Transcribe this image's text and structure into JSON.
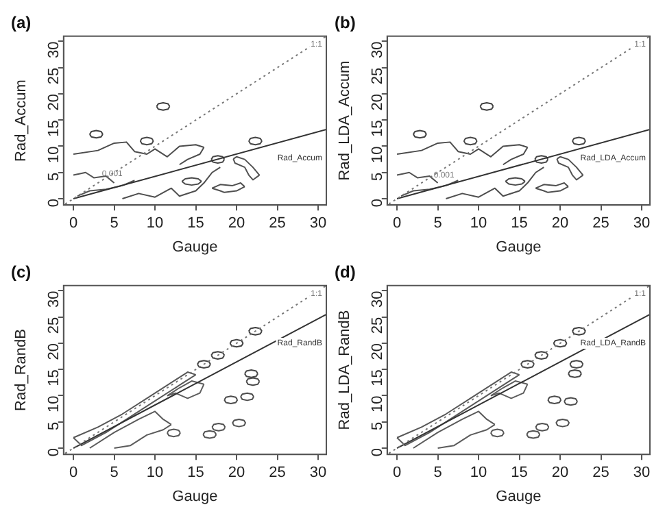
{
  "chart_data": [
    {
      "type": "line",
      "title": "(a)",
      "xlabel": "Gauge",
      "ylabel": "Rad_Accum",
      "xlim": [
        -1.2,
        31
      ],
      "ylim": [
        -1.2,
        31
      ],
      "xticks": [
        0,
        5,
        10,
        15,
        20,
        25,
        30
      ],
      "yticks": [
        0,
        5,
        10,
        15,
        20,
        25,
        30
      ],
      "legend": false,
      "marker": "none",
      "annotations": [
        {
          "text": "0.001",
          "x": 3.5,
          "y": 4.7
        }
      ],
      "series": [
        {
          "name": "1:1",
          "color": "#777777",
          "line_style": "dotted",
          "x": [
            -1,
            31
          ],
          "values": [
            -1,
            31
          ]
        },
        {
          "name": "Rad_Accum",
          "color": "#333333",
          "line_style": "solid",
          "x": [
            0,
            31
          ],
          "values": [
            0,
            13.2
          ]
        },
        {
          "color": "#404040",
          "x": [
            10.2,
            10.4,
            11,
            11.6,
            11.8
          ],
          "values": [
            17.6,
            18.1,
            18.3,
            18.1,
            17.6
          ]
        },
        {
          "color": "#414141",
          "x": [
            10.2,
            10.4,
            11,
            11.6,
            11.8
          ],
          "values": [
            17.6,
            17.1,
            16.9,
            17.1,
            17.6
          ]
        },
        {
          "color": "#424242",
          "x": [
            2,
            2.2,
            2.8,
            3.4,
            3.6
          ],
          "values": [
            12.3,
            12.8,
            13,
            12.8,
            12.3
          ]
        },
        {
          "color": "#434343",
          "x": [
            2,
            2.2,
            2.8,
            3.4,
            3.6
          ],
          "values": [
            12.3,
            11.8,
            11.6,
            11.8,
            12.3
          ]
        },
        {
          "color": "#444444",
          "x": [
            21.5,
            21.7,
            22.3,
            22.9,
            23.1
          ],
          "values": [
            11,
            11.5,
            11.7,
            11.5,
            11
          ]
        },
        {
          "color": "#454545",
          "x": [
            21.5,
            21.7,
            22.3,
            22.9,
            23.1
          ],
          "values": [
            11,
            10.5,
            10.3,
            10.5,
            11
          ]
        },
        {
          "color": "#464646",
          "x": [
            8.2,
            8.4,
            9,
            9.6,
            9.8
          ],
          "values": [
            11,
            11.5,
            11.7,
            11.5,
            11
          ]
        },
        {
          "color": "#474747",
          "x": [
            8.2,
            8.4,
            9,
            9.6,
            9.8
          ],
          "values": [
            11,
            10.5,
            10.3,
            10.5,
            11
          ]
        },
        {
          "color": "#484848",
          "x": [
            16.9,
            17.1,
            17.7,
            18.3,
            18.5
          ],
          "values": [
            7.5,
            8,
            8.2,
            8,
            7.5
          ]
        },
        {
          "color": "#494949",
          "x": [
            16.9,
            17.1,
            17.7,
            18.3,
            18.5
          ],
          "values": [
            7.5,
            7,
            6.8,
            7,
            7.5
          ]
        },
        {
          "color": "#4a4a4a",
          "x": [
            13.3,
            13.7,
            14.5,
            15.3,
            15.7
          ],
          "values": [
            3.3,
            3.8,
            4,
            3.8,
            3.3
          ]
        },
        {
          "color": "#4b4b4b",
          "x": [
            13.3,
            13.7,
            14.5,
            15.3,
            15.7
          ],
          "values": [
            3.3,
            2.8,
            2.6,
            2.8,
            3.3
          ]
        },
        {
          "color": "#4c4c4c",
          "x": [
            0,
            3,
            5,
            6.5,
            7.5,
            9,
            10,
            11.5,
            13,
            15,
            16
          ],
          "values": [
            8.5,
            9.2,
            10.6,
            10.8,
            9,
            8.5,
            9.5,
            8,
            10,
            10.3,
            9.8
          ]
        },
        {
          "color": "#4d4d4d",
          "x": [
            13,
            14,
            15.5,
            16
          ],
          "values": [
            6.5,
            7.5,
            8.5,
            9.8
          ]
        },
        {
          "color": "#4e4e4e",
          "x": [
            6,
            8,
            10,
            12,
            13,
            15,
            16,
            17,
            18
          ],
          "values": [
            0,
            1,
            0.3,
            2,
            0.5,
            1.5,
            3,
            5,
            6
          ]
        },
        {
          "color": "#4f4f4f",
          "x": [
            17,
            18,
            19.5,
            20.5,
            21
          ],
          "values": [
            2,
            2.7,
            2.5,
            3,
            2.3
          ]
        },
        {
          "color": "#505050",
          "x": [
            17,
            18,
            18.5,
            20,
            21
          ],
          "values": [
            2,
            1.5,
            1.2,
            1.5,
            2.3
          ]
        },
        {
          "color": "#515151",
          "x": [
            19.6,
            20,
            21,
            22,
            22.8
          ],
          "values": [
            7.6,
            8,
            7.5,
            6,
            4.5
          ]
        },
        {
          "color": "#525252",
          "x": [
            19.6,
            19.8,
            21,
            21.5,
            22,
            22.8
          ],
          "values": [
            7.6,
            6.8,
            6,
            4.5,
            3.6,
            4.5
          ]
        },
        {
          "color": "#535353",
          "x": [
            0,
            1.5,
            2.5,
            4,
            5
          ],
          "values": [
            4.5,
            5,
            4,
            4.3,
            3
          ]
        },
        {
          "color": "#545454",
          "x": [
            0.5,
            2,
            4,
            6,
            7.5
          ],
          "values": [
            0.5,
            1.5,
            1.8,
            2.5,
            3.5
          ]
        }
      ]
    },
    {
      "type": "line",
      "title": "(b)",
      "xlabel": "Gauge",
      "ylabel": "Rad_LDA_Accum",
      "xlim": [
        -1.2,
        31
      ],
      "ylim": [
        -1.2,
        31
      ],
      "xticks": [
        0,
        5,
        10,
        15,
        20,
        25,
        30
      ],
      "yticks": [
        0,
        5,
        10,
        15,
        20,
        25,
        30
      ],
      "legend": false,
      "marker": "none",
      "annotations": [
        {
          "text": "0.001",
          "x": 4.5,
          "y": 4.5
        }
      ],
      "series": [
        {
          "name": "1:1",
          "color": "#777777",
          "line_style": "dotted",
          "x": [
            -1,
            31
          ],
          "values": [
            -1,
            31
          ]
        },
        {
          "name": "Rad_LDA_Accum",
          "color": "#333333",
          "line_style": "solid",
          "x": [
            0,
            31
          ],
          "values": [
            0,
            13.2
          ]
        },
        {
          "color": "#404040",
          "x": [
            10.2,
            10.4,
            11,
            11.6,
            11.8
          ],
          "values": [
            17.6,
            18.1,
            18.3,
            18.1,
            17.6
          ]
        },
        {
          "color": "#414141",
          "x": [
            10.2,
            10.4,
            11,
            11.6,
            11.8
          ],
          "values": [
            17.6,
            17.1,
            16.9,
            17.1,
            17.6
          ]
        },
        {
          "color": "#424242",
          "x": [
            2,
            2.2,
            2.8,
            3.4,
            3.6
          ],
          "values": [
            12.3,
            12.8,
            13,
            12.8,
            12.3
          ]
        },
        {
          "color": "#434343",
          "x": [
            2,
            2.2,
            2.8,
            3.4,
            3.6
          ],
          "values": [
            12.3,
            11.8,
            11.6,
            11.8,
            12.3
          ]
        },
        {
          "color": "#444444",
          "x": [
            21.5,
            21.7,
            22.3,
            22.9,
            23.1
          ],
          "values": [
            11,
            11.5,
            11.7,
            11.5,
            11
          ]
        },
        {
          "color": "#454545",
          "x": [
            21.5,
            21.7,
            22.3,
            22.9,
            23.1
          ],
          "values": [
            11,
            10.5,
            10.3,
            10.5,
            11
          ]
        },
        {
          "color": "#464646",
          "x": [
            8.2,
            8.4,
            9,
            9.6,
            9.8
          ],
          "values": [
            11,
            11.5,
            11.7,
            11.5,
            11
          ]
        },
        {
          "color": "#474747",
          "x": [
            8.2,
            8.4,
            9,
            9.6,
            9.8
          ],
          "values": [
            11,
            10.5,
            10.3,
            10.5,
            11
          ]
        },
        {
          "color": "#484848",
          "x": [
            16.9,
            17.1,
            17.7,
            18.3,
            18.5
          ],
          "values": [
            7.5,
            8,
            8.2,
            8,
            7.5
          ]
        },
        {
          "color": "#494949",
          "x": [
            16.9,
            17.1,
            17.7,
            18.3,
            18.5
          ],
          "values": [
            7.5,
            7,
            6.8,
            7,
            7.5
          ]
        },
        {
          "color": "#4a4a4a",
          "x": [
            13.3,
            13.7,
            14.5,
            15.3,
            15.7
          ],
          "values": [
            3.3,
            3.8,
            4,
            3.8,
            3.3
          ]
        },
        {
          "color": "#4b4b4b",
          "x": [
            13.3,
            13.7,
            14.5,
            15.3,
            15.7
          ],
          "values": [
            3.3,
            2.8,
            2.6,
            2.8,
            3.3
          ]
        },
        {
          "color": "#4c4c4c",
          "x": [
            0,
            3,
            5,
            6.5,
            7.5,
            9,
            10,
            11.5,
            13,
            15,
            16
          ],
          "values": [
            8.5,
            9.2,
            10.6,
            10.8,
            9,
            8.5,
            9.5,
            8,
            10,
            10.3,
            9.8
          ]
        },
        {
          "color": "#4d4d4d",
          "x": [
            13,
            14,
            15.5,
            16
          ],
          "values": [
            6.5,
            7.5,
            8.5,
            9.8
          ]
        },
        {
          "color": "#4e4e4e",
          "x": [
            6,
            8,
            10,
            12,
            13,
            15,
            16,
            17,
            18
          ],
          "values": [
            0,
            1,
            0.3,
            2,
            0.5,
            1.5,
            3,
            5,
            6
          ]
        },
        {
          "color": "#4f4f4f",
          "x": [
            17,
            18,
            19.5,
            20.5,
            21
          ],
          "values": [
            2,
            2.7,
            2.5,
            3,
            2.3
          ]
        },
        {
          "color": "#505050",
          "x": [
            17,
            18,
            18.5,
            20,
            21
          ],
          "values": [
            2,
            1.5,
            1.2,
            1.5,
            2.3
          ]
        },
        {
          "color": "#515151",
          "x": [
            19.6,
            20,
            21,
            22,
            22.8
          ],
          "values": [
            7.6,
            8,
            7.5,
            6,
            4.5
          ]
        },
        {
          "color": "#525252",
          "x": [
            19.6,
            19.8,
            21,
            21.5,
            22,
            22.8
          ],
          "values": [
            7.6,
            6.8,
            6,
            4.5,
            3.6,
            4.5
          ]
        },
        {
          "color": "#535353",
          "x": [
            0,
            1.5,
            2.5,
            4,
            5
          ],
          "values": [
            4.5,
            5,
            4,
            4.3,
            3
          ]
        },
        {
          "color": "#545454",
          "x": [
            0.5,
            2,
            4,
            6,
            7.5
          ],
          "values": [
            0.5,
            1.5,
            1.8,
            2.5,
            3.5
          ]
        }
      ]
    },
    {
      "type": "line",
      "title": "(c)",
      "xlabel": "Gauge",
      "ylabel": "Rad_RandB",
      "xlim": [
        -1.2,
        31
      ],
      "ylim": [
        -1.2,
        31
      ],
      "xticks": [
        0,
        5,
        10,
        15,
        20,
        25,
        30
      ],
      "yticks": [
        0,
        5,
        10,
        15,
        20,
        25,
        30
      ],
      "legend": false,
      "marker": "none",
      "series": [
        {
          "name": "1:1",
          "color": "#777777",
          "line_style": "dotted",
          "x": [
            -1,
            31
          ],
          "values": [
            -1,
            31
          ]
        },
        {
          "name": "Rad_RandB",
          "color": "#333333",
          "line_style": "solid",
          "x": [
            0,
            31
          ],
          "values": [
            0,
            25.5
          ]
        },
        {
          "color": "#404040",
          "x": [
            21.5,
            21.7,
            22.3,
            22.9,
            23.1
          ],
          "values": [
            22.3,
            22.8,
            23,
            22.8,
            22.3
          ]
        },
        {
          "color": "#414141",
          "x": [
            21.5,
            21.7,
            22.3,
            22.9,
            23.1
          ],
          "values": [
            22.3,
            21.8,
            21.6,
            21.8,
            22.3
          ]
        },
        {
          "color": "#424242",
          "x": [
            19.2,
            19.4,
            20,
            20.6,
            20.8
          ],
          "values": [
            20,
            20.5,
            20.7,
            20.5,
            20
          ]
        },
        {
          "color": "#434343",
          "x": [
            19.2,
            19.4,
            20,
            20.6,
            20.8
          ],
          "values": [
            20,
            19.5,
            19.3,
            19.5,
            20
          ]
        },
        {
          "color": "#444444",
          "x": [
            16.9,
            17.1,
            17.7,
            18.3,
            18.5
          ],
          "values": [
            17.7,
            18.2,
            18.4,
            18.2,
            17.7
          ]
        },
        {
          "color": "#454545",
          "x": [
            16.9,
            17.1,
            17.7,
            18.3,
            18.5
          ],
          "values": [
            17.7,
            17.2,
            17,
            17.2,
            17.7
          ]
        },
        {
          "color": "#464646",
          "x": [
            15.2,
            15.4,
            16,
            16.6,
            16.8
          ],
          "values": [
            16,
            16.5,
            16.7,
            16.5,
            16
          ]
        },
        {
          "color": "#474747",
          "x": [
            15.2,
            15.4,
            16,
            16.6,
            16.8
          ],
          "values": [
            16,
            15.5,
            15.3,
            15.5,
            16
          ]
        },
        {
          "color": "#484848",
          "x": [
            21,
            21.2,
            21.8,
            22.4,
            22.6
          ],
          "values": [
            14.2,
            14.7,
            14.9,
            14.7,
            14.2
          ]
        },
        {
          "color": "#494949",
          "x": [
            21,
            21.2,
            21.8,
            22.4,
            22.6
          ],
          "values": [
            14.2,
            13.7,
            13.5,
            13.7,
            14.2
          ]
        },
        {
          "color": "#4a4a4a",
          "x": [
            21.2,
            21.4,
            22,
            22.6,
            22.8
          ],
          "values": [
            12.7,
            13.2,
            13.4,
            13.2,
            12.7
          ]
        },
        {
          "color": "#4b4b4b",
          "x": [
            21.2,
            21.4,
            22,
            22.6,
            22.8
          ],
          "values": [
            12.7,
            12.2,
            12,
            12.2,
            12.7
          ]
        },
        {
          "color": "#4c4c4c",
          "x": [
            18.5,
            18.7,
            19.3,
            19.9,
            20.1
          ],
          "values": [
            9.2,
            9.7,
            9.9,
            9.7,
            9.2
          ]
        },
        {
          "color": "#4d4d4d",
          "x": [
            18.5,
            18.7,
            19.3,
            19.9,
            20.1
          ],
          "values": [
            9.2,
            8.7,
            8.5,
            8.7,
            9.2
          ]
        },
        {
          "color": "#4e4e4e",
          "x": [
            20.5,
            20.7,
            21.3,
            21.9,
            22.1
          ],
          "values": [
            9.8,
            10.3,
            10.5,
            10.3,
            9.8
          ]
        },
        {
          "color": "#4f4f4f",
          "x": [
            20.5,
            20.7,
            21.3,
            21.9,
            22.1
          ],
          "values": [
            9.8,
            9.3,
            9.1,
            9.3,
            9.8
          ]
        },
        {
          "color": "#505050",
          "x": [
            19.5,
            19.7,
            20.3,
            20.9,
            21.1
          ],
          "values": [
            4.8,
            5.3,
            5.5,
            5.3,
            4.8
          ]
        },
        {
          "color": "#515151",
          "x": [
            19.5,
            19.7,
            20.3,
            20.9,
            21.1
          ],
          "values": [
            4.8,
            4.3,
            4.1,
            4.3,
            4.8
          ]
        },
        {
          "color": "#525252",
          "x": [
            17,
            17.2,
            17.8,
            18.4,
            18.6
          ],
          "values": [
            4,
            4.5,
            4.7,
            4.5,
            4
          ]
        },
        {
          "color": "#535353",
          "x": [
            17,
            17.2,
            17.8,
            18.4,
            18.6
          ],
          "values": [
            4,
            3.5,
            3.3,
            3.5,
            4
          ]
        },
        {
          "color": "#545454",
          "x": [
            15.9,
            16.1,
            16.7,
            17.3,
            17.5
          ],
          "values": [
            2.6,
            3.1,
            3.3,
            3.1,
            2.6
          ]
        },
        {
          "color": "#555555",
          "x": [
            15.9,
            16.1,
            16.7,
            17.3,
            17.5
          ],
          "values": [
            2.6,
            2.1,
            1.9,
            2.1,
            2.6
          ]
        },
        {
          "color": "#565656",
          "x": [
            11.5,
            11.7,
            12.3,
            12.9,
            13.1
          ],
          "values": [
            2.9,
            3.4,
            3.6,
            3.4,
            2.9
          ]
        },
        {
          "color": "#575757",
          "x": [
            11.5,
            11.7,
            12.3,
            12.9,
            13.1
          ],
          "values": [
            2.9,
            2.4,
            2.2,
            2.4,
            2.9
          ]
        },
        {
          "color": "#585858",
          "x": [
            0,
            3,
            6,
            9,
            12,
            14,
            15
          ],
          "values": [
            2,
            4,
            6.5,
            9.5,
            12.5,
            14.5,
            14
          ]
        },
        {
          "color": "#595959",
          "x": [
            0,
            1,
            4,
            7,
            10,
            13,
            15
          ],
          "values": [
            2,
            0.5,
            3,
            6,
            9,
            12,
            14
          ]
        },
        {
          "color": "#5a5a5a",
          "x": [
            2,
            5,
            8,
            10,
            11,
            12
          ],
          "values": [
            0,
            3,
            5.5,
            7,
            5.5,
            4.5
          ]
        },
        {
          "color": "#5b5b5b",
          "x": [
            5,
            7,
            9,
            11,
            12
          ],
          "values": [
            0,
            0.5,
            2.5,
            3.5,
            4.5
          ]
        },
        {
          "color": "#5c5c5c",
          "x": [
            11.5,
            13,
            14.5,
            16
          ],
          "values": [
            10,
            11.5,
            12.8,
            12.2
          ]
        },
        {
          "color": "#5d5d5d",
          "x": [
            11.5,
            12.5,
            14,
            15.5,
            16
          ],
          "values": [
            10,
            10.5,
            9.5,
            10.5,
            12.2
          ]
        }
      ]
    },
    {
      "type": "line",
      "title": "(d)",
      "xlabel": "Gauge",
      "ylabel": "Rad_LDA_RandB",
      "xlim": [
        -1.2,
        31
      ],
      "ylim": [
        -1.2,
        31
      ],
      "xticks": [
        0,
        5,
        10,
        15,
        20,
        25,
        30
      ],
      "yticks": [
        0,
        5,
        10,
        15,
        20,
        25,
        30
      ],
      "legend": false,
      "marker": "none",
      "series": [
        {
          "name": "1:1",
          "color": "#777777",
          "line_style": "dotted",
          "x": [
            -1,
            31
          ],
          "values": [
            -1,
            31
          ]
        },
        {
          "name": "Rad_LDA_RandB",
          "color": "#333333",
          "line_style": "solid",
          "x": [
            0,
            31
          ],
          "values": [
            0,
            25.5
          ]
        },
        {
          "color": "#404040",
          "x": [
            21.5,
            21.7,
            22.3,
            22.9,
            23.1
          ],
          "values": [
            22.3,
            22.8,
            23,
            22.8,
            22.3
          ]
        },
        {
          "color": "#414141",
          "x": [
            21.5,
            21.7,
            22.3,
            22.9,
            23.1
          ],
          "values": [
            22.3,
            21.8,
            21.6,
            21.8,
            22.3
          ]
        },
        {
          "color": "#424242",
          "x": [
            19.2,
            19.4,
            20,
            20.6,
            20.8
          ],
          "values": [
            20,
            20.5,
            20.7,
            20.5,
            20
          ]
        },
        {
          "color": "#434343",
          "x": [
            19.2,
            19.4,
            20,
            20.6,
            20.8
          ],
          "values": [
            20,
            19.5,
            19.3,
            19.5,
            20
          ]
        },
        {
          "color": "#444444",
          "x": [
            16.9,
            17.1,
            17.7,
            18.3,
            18.5
          ],
          "values": [
            17.7,
            18.2,
            18.4,
            18.2,
            17.7
          ]
        },
        {
          "color": "#454545",
          "x": [
            16.9,
            17.1,
            17.7,
            18.3,
            18.5
          ],
          "values": [
            17.7,
            17.2,
            17,
            17.2,
            17.7
          ]
        },
        {
          "color": "#464646",
          "x": [
            15.2,
            15.4,
            16,
            16.6,
            16.8
          ],
          "values": [
            16,
            16.5,
            16.7,
            16.5,
            16
          ]
        },
        {
          "color": "#474747",
          "x": [
            15.2,
            15.4,
            16,
            16.6,
            16.8
          ],
          "values": [
            16,
            15.5,
            15.3,
            15.5,
            16
          ]
        },
        {
          "color": "#484848",
          "x": [
            21,
            21.2,
            21.8,
            22.4,
            22.6
          ],
          "values": [
            14.2,
            14.7,
            14.9,
            14.7,
            14.2
          ]
        },
        {
          "color": "#494949",
          "x": [
            21,
            21.2,
            21.8,
            22.4,
            22.6
          ],
          "values": [
            14.2,
            13.7,
            13.5,
            13.7,
            14.2
          ]
        },
        {
          "color": "#4a4a4a",
          "x": [
            21.2,
            21.4,
            22,
            22.6,
            22.8
          ],
          "values": [
            16,
            16.5,
            16.7,
            16.5,
            16
          ]
        },
        {
          "color": "#4b4b4b",
          "x": [
            21.2,
            21.4,
            22,
            22.6,
            22.8
          ],
          "values": [
            16,
            15.5,
            15.3,
            15.5,
            16
          ]
        },
        {
          "color": "#4c4c4c",
          "x": [
            18.5,
            18.7,
            19.3,
            19.9,
            20.1
          ],
          "values": [
            9.2,
            9.7,
            9.9,
            9.7,
            9.2
          ]
        },
        {
          "color": "#4d4d4d",
          "x": [
            18.5,
            18.7,
            19.3,
            19.9,
            20.1
          ],
          "values": [
            9.2,
            8.7,
            8.5,
            8.7,
            9.2
          ]
        },
        {
          "color": "#4e4e4e",
          "x": [
            20.5,
            20.7,
            21.3,
            21.9,
            22.1
          ],
          "values": [
            8.9,
            9.4,
            9.6,
            9.4,
            8.9
          ]
        },
        {
          "color": "#4f4f4f",
          "x": [
            20.5,
            20.7,
            21.3,
            21.9,
            22.1
          ],
          "values": [
            8.9,
            8.4,
            8.2,
            8.4,
            8.9
          ]
        },
        {
          "color": "#505050",
          "x": [
            19.5,
            19.7,
            20.3,
            20.9,
            21.1
          ],
          "values": [
            4.8,
            5.3,
            5.5,
            5.3,
            4.8
          ]
        },
        {
          "color": "#515151",
          "x": [
            19.5,
            19.7,
            20.3,
            20.9,
            21.1
          ],
          "values": [
            4.8,
            4.3,
            4.1,
            4.3,
            4.8
          ]
        },
        {
          "color": "#525252",
          "x": [
            17,
            17.2,
            17.8,
            18.4,
            18.6
          ],
          "values": [
            4,
            4.5,
            4.7,
            4.5,
            4
          ]
        },
        {
          "color": "#535353",
          "x": [
            17,
            17.2,
            17.8,
            18.4,
            18.6
          ],
          "values": [
            4,
            3.5,
            3.3,
            3.5,
            4
          ]
        },
        {
          "color": "#545454",
          "x": [
            15.9,
            16.1,
            16.7,
            17.3,
            17.5
          ],
          "values": [
            2.6,
            3.1,
            3.3,
            3.1,
            2.6
          ]
        },
        {
          "color": "#555555",
          "x": [
            15.9,
            16.1,
            16.7,
            17.3,
            17.5
          ],
          "values": [
            2.6,
            2.1,
            1.9,
            2.1,
            2.6
          ]
        },
        {
          "color": "#565656",
          "x": [
            11.5,
            11.7,
            12.3,
            12.9,
            13.1
          ],
          "values": [
            2.9,
            3.4,
            3.6,
            3.4,
            2.9
          ]
        },
        {
          "color": "#575757",
          "x": [
            11.5,
            11.7,
            12.3,
            12.9,
            13.1
          ],
          "values": [
            2.9,
            2.4,
            2.2,
            2.4,
            2.9
          ]
        },
        {
          "color": "#585858",
          "x": [
            0,
            3,
            6,
            9,
            12,
            14,
            15
          ],
          "values": [
            2,
            4,
            6.5,
            9.5,
            12.5,
            14.5,
            14
          ]
        },
        {
          "color": "#595959",
          "x": [
            0,
            1,
            4,
            7,
            10,
            13,
            15
          ],
          "values": [
            2,
            0.5,
            3,
            6,
            9,
            12,
            14
          ]
        },
        {
          "color": "#5a5a5a",
          "x": [
            2,
            5,
            8,
            10,
            11,
            12
          ],
          "values": [
            0,
            3,
            5.5,
            7,
            5.5,
            4.5
          ]
        },
        {
          "color": "#5b5b5b",
          "x": [
            5,
            7,
            9,
            11,
            12
          ],
          "values": [
            0,
            0.5,
            2.5,
            3.5,
            4.5
          ]
        },
        {
          "color": "#5c5c5c",
          "x": [
            11.5,
            13,
            14.5,
            16
          ],
          "values": [
            10,
            11.5,
            12.8,
            12.2
          ]
        },
        {
          "color": "#5d5d5d",
          "x": [
            11.5,
            12.5,
            14,
            15.5,
            16
          ],
          "values": [
            10,
            10.5,
            9.5,
            10.5,
            12.2
          ]
        }
      ]
    }
  ]
}
